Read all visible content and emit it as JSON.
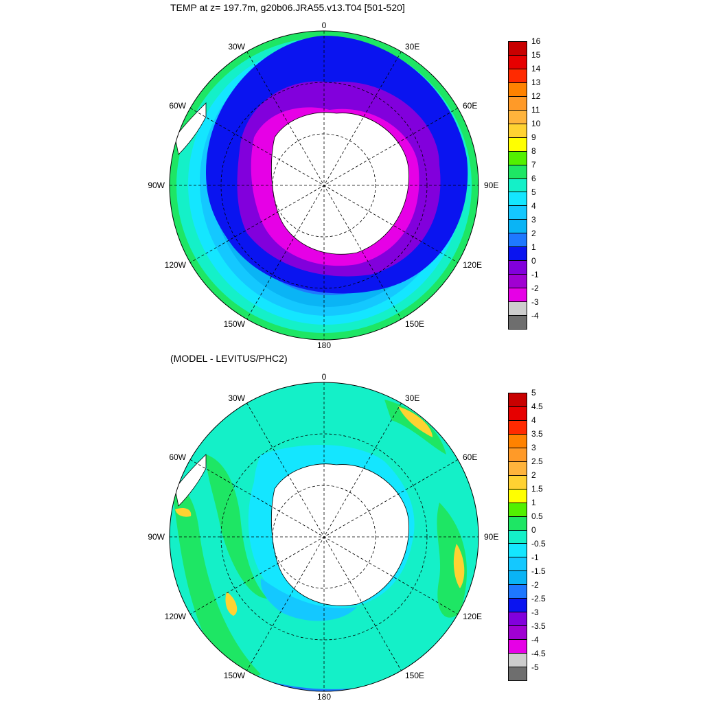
{
  "panels": [
    {
      "title": "TEMP at z= 197.7m, g20b06.JRA55.v13.T04 [501-520]",
      "colorbar": {
        "labels": [
          "16",
          "15",
          "14",
          "13",
          "12",
          "11",
          "10",
          "9",
          "8",
          "7",
          "6",
          "5",
          "4",
          "3",
          "2",
          "1",
          "0",
          "-1",
          "-2",
          "-3",
          "-4"
        ],
        "colors": [
          "#c80000",
          "#e60000",
          "#ff2a00",
          "#ff8200",
          "#ff9a28",
          "#ffb43c",
          "#ffd232",
          "#ffff00",
          "#52f000",
          "#1ee664",
          "#14f0c8",
          "#14e6ff",
          "#14c8ff",
          "#0ab4f5",
          "#1e78ff",
          "#0a14f0",
          "#8200dc",
          "#a000d2",
          "#e600e6",
          "#cdcdcd",
          "#6e6e6e"
        ]
      }
    },
    {
      "title": "(MODEL - LEVITUS/PHC2)",
      "colorbar": {
        "labels": [
          "5",
          "4.5",
          "4",
          "3.5",
          "3",
          "2.5",
          "2",
          "1.5",
          "1",
          "0.5",
          "0",
          "-0.5",
          "-1",
          "-1.5",
          "-2",
          "-2.5",
          "-3",
          "-3.5",
          "-4",
          "-4.5",
          "-5"
        ],
        "colors": [
          "#c80000",
          "#e60000",
          "#ff2a00",
          "#ff8200",
          "#ff9a28",
          "#ffb43c",
          "#ffd232",
          "#ffff00",
          "#52f000",
          "#1ee664",
          "#14f0c8",
          "#14e6ff",
          "#14c8ff",
          "#0ab4f5",
          "#1e78ff",
          "#0a14f0",
          "#8200dc",
          "#a000d2",
          "#e600e6",
          "#cdcdcd",
          "#6e6e6e"
        ]
      }
    }
  ],
  "longitude_labels": [
    "0",
    "30E",
    "60E",
    "90E",
    "120E",
    "150E",
    "180",
    "150W",
    "120W",
    "90W",
    "60W",
    "30W"
  ]
}
